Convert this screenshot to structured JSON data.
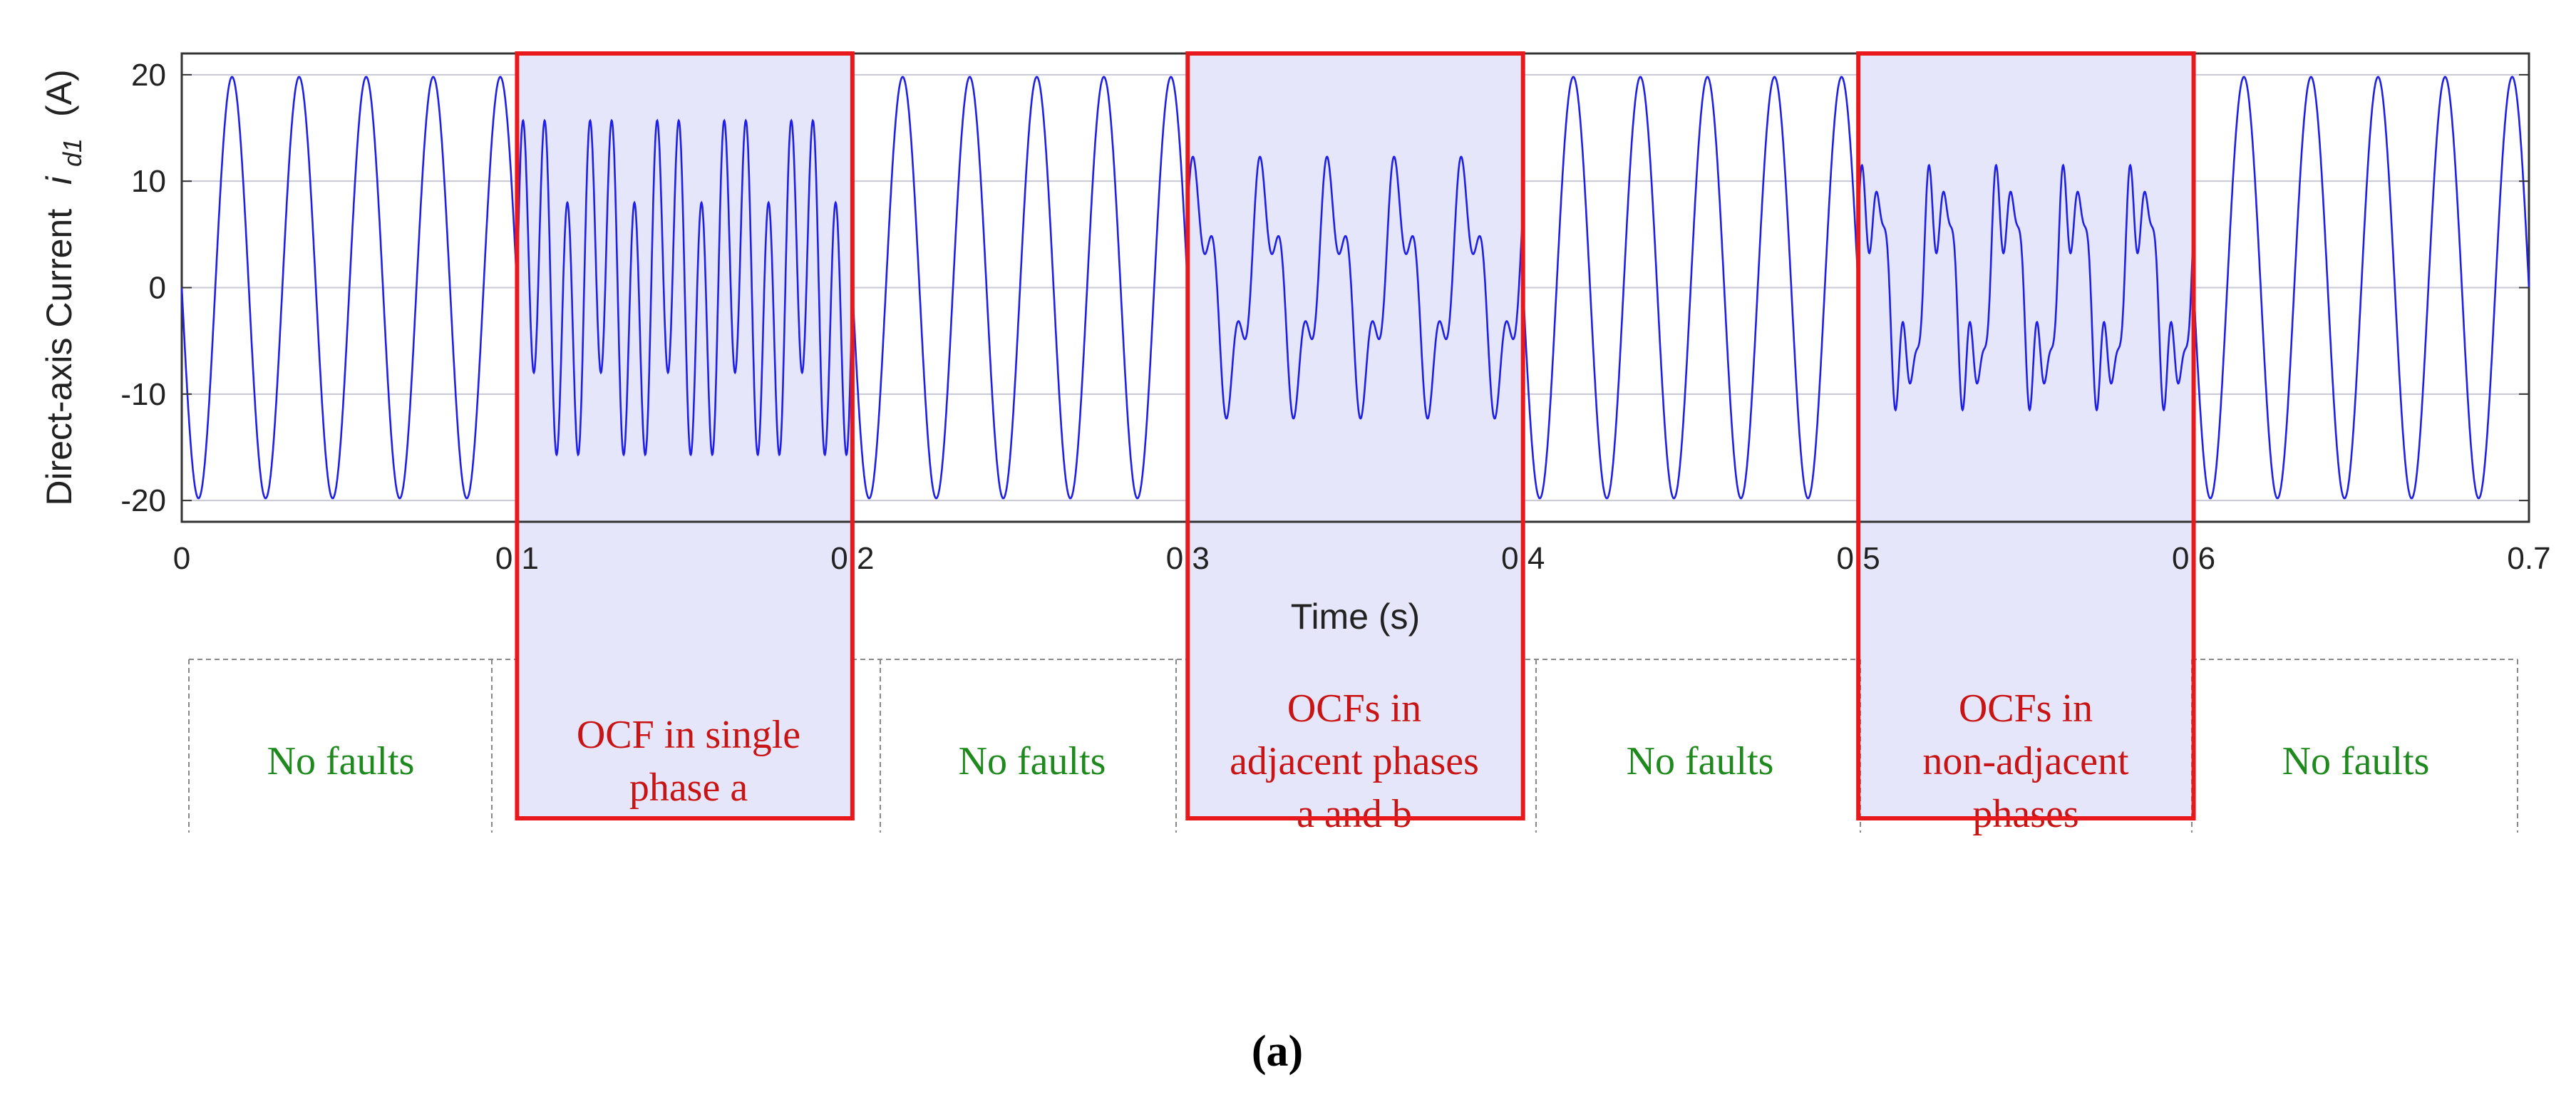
{
  "chart_data": {
    "type": "line",
    "title": "",
    "xlabel": "Time (s)",
    "ylabel": {
      "prefix": "Direct-axis Current",
      "symbol": "i",
      "subscript": "d1",
      "unit": "(A)"
    },
    "xlim": [
      0,
      0.7
    ],
    "ylim": [
      -22,
      22
    ],
    "xticks": [
      0,
      0.1,
      0.2,
      0.3,
      0.4,
      0.5,
      0.6,
      0.7
    ],
    "xtick_labels": [
      "0",
      "0.1",
      "0.2",
      "0.3",
      "0.4",
      "0.5",
      "0.6",
      "0.7"
    ],
    "yticks": [
      20,
      10,
      0,
      -10,
      -20
    ],
    "ytick_labels": [
      "20",
      "10",
      "0",
      "-10",
      "-20"
    ],
    "grid": true,
    "line_color": "#1f1fe6",
    "series": [
      {
        "frequency_hz": 50,
        "amplitude": 19.8,
        "segments": [
          {
            "t_start": 0.0,
            "t_end": 0.1,
            "condition": "normal",
            "peak": 19.8,
            "trough": -19.8
          },
          {
            "t_start": 0.1,
            "t_end": 0.2,
            "condition": "ocf_single_phase",
            "peak": 15.7,
            "trough": -15.7
          },
          {
            "t_start": 0.2,
            "t_end": 0.3,
            "condition": "normal",
            "peak": 19.8,
            "trough": -19.8
          },
          {
            "t_start": 0.3,
            "t_end": 0.4,
            "condition": "ocf_adjacent_phases",
            "peak": 12.3,
            "trough": -12.3
          },
          {
            "t_start": 0.4,
            "t_end": 0.5,
            "condition": "normal",
            "peak": 19.8,
            "trough": -19.8
          },
          {
            "t_start": 0.5,
            "t_end": 0.6,
            "condition": "ocf_non_adjacent_phases",
            "peak": 11.5,
            "trough": -11.5
          },
          {
            "t_start": 0.6,
            "t_end": 0.7,
            "condition": "normal",
            "peak": 19.8,
            "trough": -19.8
          }
        ]
      }
    ],
    "fault_regions": [
      {
        "t_start": 0.1,
        "t_end": 0.2
      },
      {
        "t_start": 0.3,
        "t_end": 0.4
      },
      {
        "t_start": 0.5,
        "t_end": 0.6
      }
    ]
  },
  "colors": {
    "fault_box": "#e8191c",
    "fault_fill": "#e6e6fa",
    "no_fault_text": "#1e8a1e",
    "fault_text": "#c81414",
    "grid": "#c8c8d6",
    "dashed": "#888888"
  },
  "annotation_segments": [
    {
      "lines": [
        "No faults"
      ],
      "kind": "normal"
    },
    {
      "lines": [
        "OCF in single",
        "phase a"
      ],
      "kind": "fault"
    },
    {
      "lines": [
        "No faults"
      ],
      "kind": "normal"
    },
    {
      "lines": [
        "OCFs in",
        "adjacent phases",
        "a and b"
      ],
      "kind": "fault"
    },
    {
      "lines": [
        "No faults"
      ],
      "kind": "normal"
    },
    {
      "lines": [
        "OCFs in",
        "non-adjacent",
        "phases"
      ],
      "kind": "fault"
    },
    {
      "lines": [
        "No faults"
      ],
      "kind": "normal"
    }
  ],
  "caption": "(a)"
}
